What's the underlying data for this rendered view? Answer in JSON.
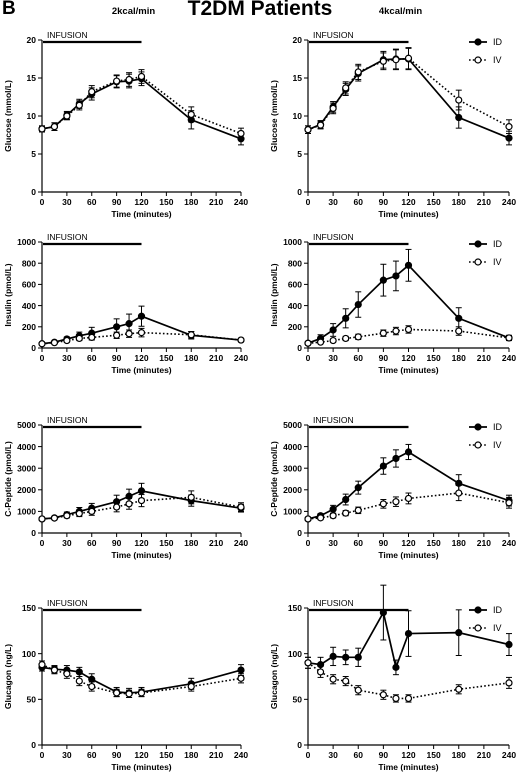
{
  "figure": {
    "panel_letter": "B",
    "title": "T2DM Patients"
  },
  "chart_data": [
    {
      "type": "line",
      "column_header": "2kcal/min",
      "infusion_label": "INFUSION",
      "infusion_range": [
        0,
        120
      ],
      "xlabel": "Time (minutes)",
      "ylabel": "Glucose (mmol/L)",
      "xlim": [
        0,
        240
      ],
      "ylim": [
        0,
        20
      ],
      "xticks": [
        0,
        30,
        60,
        90,
        120,
        150,
        180,
        210,
        240
      ],
      "yticks": [
        0,
        5,
        10,
        15,
        20
      ],
      "legend": null,
      "series": [
        {
          "name": "ID",
          "style": "solid",
          "marker": "filled",
          "x": [
            0,
            15,
            30,
            45,
            60,
            90,
            105,
            120,
            180,
            240
          ],
          "y": [
            8.3,
            8.6,
            10.1,
            11.6,
            12.9,
            14.5,
            14.6,
            14.9,
            9.5,
            7.0
          ],
          "err": [
            0.4,
            0.5,
            0.5,
            0.6,
            0.8,
            0.8,
            0.9,
            0.9,
            1.2,
            0.8
          ]
        },
        {
          "name": "IV",
          "style": "dotted",
          "marker": "open",
          "x": [
            0,
            15,
            30,
            45,
            60,
            90,
            105,
            120,
            180,
            240
          ],
          "y": [
            8.3,
            8.6,
            10.0,
            11.4,
            13.2,
            14.6,
            14.8,
            15.2,
            10.2,
            7.7
          ],
          "err": [
            0.4,
            0.5,
            0.5,
            0.6,
            0.8,
            0.8,
            0.9,
            0.9,
            1.0,
            0.7
          ]
        }
      ]
    },
    {
      "type": "line",
      "column_header": "4kcal/min",
      "infusion_label": "INFUSION",
      "infusion_range": [
        0,
        120
      ],
      "xlabel": "Time (minutes)",
      "ylabel": "Glucose (mmol/L)",
      "xlim": [
        0,
        240
      ],
      "ylim": [
        0,
        20
      ],
      "xticks": [
        0,
        30,
        60,
        90,
        120,
        150,
        180,
        210,
        240
      ],
      "yticks": [
        0,
        5,
        10,
        15,
        20
      ],
      "legend": {
        "position": "top-right",
        "entries": [
          "ID",
          "IV"
        ]
      },
      "series": [
        {
          "name": "ID",
          "style": "solid",
          "marker": "filled",
          "x": [
            0,
            15,
            30,
            45,
            60,
            90,
            105,
            120,
            180,
            240
          ],
          "y": [
            8.2,
            8.9,
            11.2,
            13.5,
            15.6,
            17.4,
            17.5,
            17.5,
            9.8,
            7.1
          ],
          "err": [
            0.5,
            0.5,
            0.7,
            0.8,
            1.0,
            1.1,
            1.3,
            1.4,
            1.4,
            0.9
          ]
        },
        {
          "name": "IV",
          "style": "dotted",
          "marker": "open",
          "x": [
            0,
            15,
            30,
            45,
            60,
            90,
            105,
            120,
            180,
            240
          ],
          "y": [
            8.2,
            8.8,
            11.0,
            13.7,
            15.8,
            17.2,
            17.4,
            17.6,
            12.1,
            8.6
          ],
          "err": [
            0.5,
            0.5,
            0.7,
            0.8,
            1.0,
            1.1,
            1.3,
            1.4,
            1.3,
            0.9
          ]
        }
      ]
    },
    {
      "type": "line",
      "infusion_label": "INFUSION",
      "infusion_range": [
        0,
        120
      ],
      "xlabel": "Time (minutes)",
      "ylabel": "Insulin (pmol/L)",
      "xlim": [
        0,
        240
      ],
      "ylim": [
        0,
        1000
      ],
      "xticks": [
        0,
        30,
        60,
        90,
        120,
        150,
        180,
        210,
        240
      ],
      "yticks": [
        0,
        200,
        400,
        600,
        800,
        1000
      ],
      "legend": null,
      "series": [
        {
          "name": "ID",
          "style": "solid",
          "marker": "filled",
          "x": [
            0,
            15,
            30,
            45,
            60,
            90,
            105,
            120,
            180,
            240
          ],
          "y": [
            40,
            55,
            85,
            115,
            140,
            200,
            230,
            300,
            120,
            75
          ],
          "err": [
            10,
            12,
            20,
            35,
            55,
            75,
            90,
            95,
            35,
            15
          ]
        },
        {
          "name": "IV",
          "style": "dotted",
          "marker": "open",
          "x": [
            0,
            15,
            30,
            45,
            60,
            90,
            105,
            120,
            180,
            240
          ],
          "y": [
            40,
            50,
            70,
            90,
            100,
            120,
            135,
            145,
            125,
            75
          ],
          "err": [
            10,
            10,
            15,
            20,
            25,
            30,
            35,
            40,
            30,
            15
          ]
        }
      ]
    },
    {
      "type": "line",
      "infusion_label": "INFUSION",
      "infusion_range": [
        0,
        120
      ],
      "xlabel": "Time (minutes)",
      "ylabel": "Insulin (pmol/L)",
      "xlim": [
        0,
        240
      ],
      "ylim": [
        0,
        1000
      ],
      "xticks": [
        0,
        30,
        60,
        90,
        120,
        150,
        180,
        210,
        240
      ],
      "yticks": [
        0,
        200,
        400,
        600,
        800,
        1000
      ],
      "legend": {
        "position": "top-right",
        "entries": [
          "ID",
          "IV"
        ]
      },
      "series": [
        {
          "name": "ID",
          "style": "solid",
          "marker": "filled",
          "x": [
            0,
            15,
            30,
            45,
            60,
            90,
            105,
            120,
            180,
            240
          ],
          "y": [
            45,
            90,
            170,
            280,
            410,
            640,
            680,
            780,
            280,
            95
          ],
          "err": [
            15,
            35,
            60,
            90,
            120,
            150,
            140,
            150,
            100,
            25
          ]
        },
        {
          "name": "IV",
          "style": "dotted",
          "marker": "open",
          "x": [
            0,
            15,
            30,
            45,
            60,
            90,
            105,
            120,
            180,
            240
          ],
          "y": [
            45,
            55,
            70,
            90,
            105,
            140,
            160,
            175,
            160,
            95
          ],
          "err": [
            10,
            10,
            15,
            20,
            25,
            30,
            35,
            35,
            40,
            20
          ]
        }
      ]
    },
    {
      "type": "line",
      "infusion_label": "INFUSION",
      "infusion_range": [
        0,
        120
      ],
      "xlabel": "Time (minutes)",
      "ylabel": "C-Peptide (pmol/L)",
      "xlim": [
        0,
        240
      ],
      "ylim": [
        0,
        5000
      ],
      "xticks": [
        0,
        30,
        60,
        90,
        120,
        150,
        180,
        210,
        240
      ],
      "yticks": [
        0,
        1000,
        2000,
        3000,
        4000,
        5000
      ],
      "legend": null,
      "series": [
        {
          "name": "ID",
          "style": "solid",
          "marker": "filled",
          "x": [
            0,
            15,
            30,
            45,
            60,
            90,
            105,
            120,
            180,
            240
          ],
          "y": [
            650,
            700,
            850,
            1000,
            1150,
            1450,
            1700,
            1950,
            1500,
            1150
          ],
          "err": [
            60,
            80,
            120,
            180,
            220,
            300,
            330,
            350,
            260,
            180
          ]
        },
        {
          "name": "IV",
          "style": "dotted",
          "marker": "open",
          "x": [
            0,
            15,
            30,
            45,
            60,
            90,
            105,
            120,
            180,
            240
          ],
          "y": [
            650,
            690,
            800,
            900,
            1000,
            1200,
            1350,
            1500,
            1650,
            1200
          ],
          "err": [
            60,
            70,
            100,
            140,
            180,
            220,
            250,
            280,
            300,
            200
          ]
        }
      ]
    },
    {
      "type": "line",
      "infusion_label": "INFUSION",
      "infusion_range": [
        0,
        120
      ],
      "xlabel": "Time (minutes)",
      "ylabel": "C-Peptide (pmol/L)",
      "xlim": [
        0,
        240
      ],
      "ylim": [
        0,
        5000
      ],
      "xticks": [
        0,
        30,
        60,
        90,
        120,
        150,
        180,
        210,
        240
      ],
      "yticks": [
        0,
        1000,
        2000,
        3000,
        4000,
        5000
      ],
      "legend": {
        "position": "top-right",
        "entries": [
          "ID",
          "IV"
        ]
      },
      "series": [
        {
          "name": "ID",
          "style": "solid",
          "marker": "filled",
          "x": [
            0,
            15,
            30,
            45,
            60,
            90,
            105,
            120,
            180,
            240
          ],
          "y": [
            650,
            800,
            1100,
            1550,
            2100,
            3100,
            3450,
            3750,
            2300,
            1500
          ],
          "err": [
            60,
            100,
            180,
            250,
            300,
            380,
            400,
            350,
            400,
            250
          ]
        },
        {
          "name": "IV",
          "style": "dotted",
          "marker": "open",
          "x": [
            0,
            15,
            30,
            45,
            60,
            90,
            105,
            120,
            180,
            240
          ],
          "y": [
            650,
            700,
            800,
            920,
            1050,
            1350,
            1450,
            1600,
            1850,
            1400
          ],
          "err": [
            60,
            80,
            100,
            120,
            150,
            200,
            220,
            250,
            350,
            250
          ]
        }
      ]
    },
    {
      "type": "line",
      "infusion_label": "INFUSION",
      "infusion_range": [
        0,
        120
      ],
      "xlabel": "Time (minutes)",
      "ylabel": "Glucagon (ng/L)",
      "xlim": [
        0,
        240
      ],
      "ylim": [
        0,
        150
      ],
      "xticks": [
        0,
        30,
        60,
        90,
        120,
        150,
        180,
        210,
        240
      ],
      "yticks": [
        0,
        50,
        100,
        150
      ],
      "legend": null,
      "series": [
        {
          "name": "ID",
          "style": "solid",
          "marker": "filled",
          "x": [
            0,
            15,
            30,
            45,
            60,
            90,
            105,
            120,
            180,
            240
          ],
          "y": [
            85,
            83,
            82,
            80,
            72,
            58,
            57,
            58,
            67,
            82
          ],
          "err": [
            4,
            4,
            5,
            5,
            6,
            5,
            5,
            5,
            6,
            6
          ]
        },
        {
          "name": "IV",
          "style": "dotted",
          "marker": "open",
          "x": [
            0,
            15,
            30,
            45,
            60,
            90,
            105,
            120,
            180,
            240
          ],
          "y": [
            88,
            82,
            78,
            70,
            64,
            57,
            56,
            57,
            64,
            73
          ],
          "err": [
            4,
            4,
            5,
            5,
            5,
            4,
            4,
            4,
            5,
            5
          ]
        }
      ]
    },
    {
      "type": "line",
      "infusion_label": "INFUSION",
      "infusion_range": [
        0,
        120
      ],
      "xlabel": "Time (minutes)",
      "ylabel": "Glucagon (ng/L)",
      "xlim": [
        0,
        240
      ],
      "ylim": [
        0,
        150
      ],
      "xticks": [
        0,
        30,
        60,
        90,
        120,
        150,
        180,
        210,
        240
      ],
      "yticks": [
        0,
        50,
        100,
        150
      ],
      "legend": {
        "position": "top-right",
        "entries": [
          "ID",
          "IV"
        ]
      },
      "series": [
        {
          "name": "ID",
          "style": "solid",
          "marker": "filled",
          "x": [
            0,
            15,
            30,
            45,
            60,
            90,
            105,
            120,
            180,
            240
          ],
          "y": [
            90,
            88,
            97,
            96,
            96,
            145,
            85,
            122,
            123,
            110
          ],
          "err": [
            6,
            8,
            10,
            8,
            10,
            30,
            8,
            25,
            25,
            12
          ]
        },
        {
          "name": "IV",
          "style": "dotted",
          "marker": "open",
          "x": [
            0,
            15,
            30,
            45,
            60,
            90,
            105,
            120,
            180,
            240
          ],
          "y": [
            90,
            80,
            72,
            70,
            60,
            55,
            51,
            51,
            61,
            68
          ],
          "err": [
            6,
            6,
            5,
            5,
            5,
            5,
            4,
            4,
            5,
            6
          ]
        }
      ]
    }
  ]
}
